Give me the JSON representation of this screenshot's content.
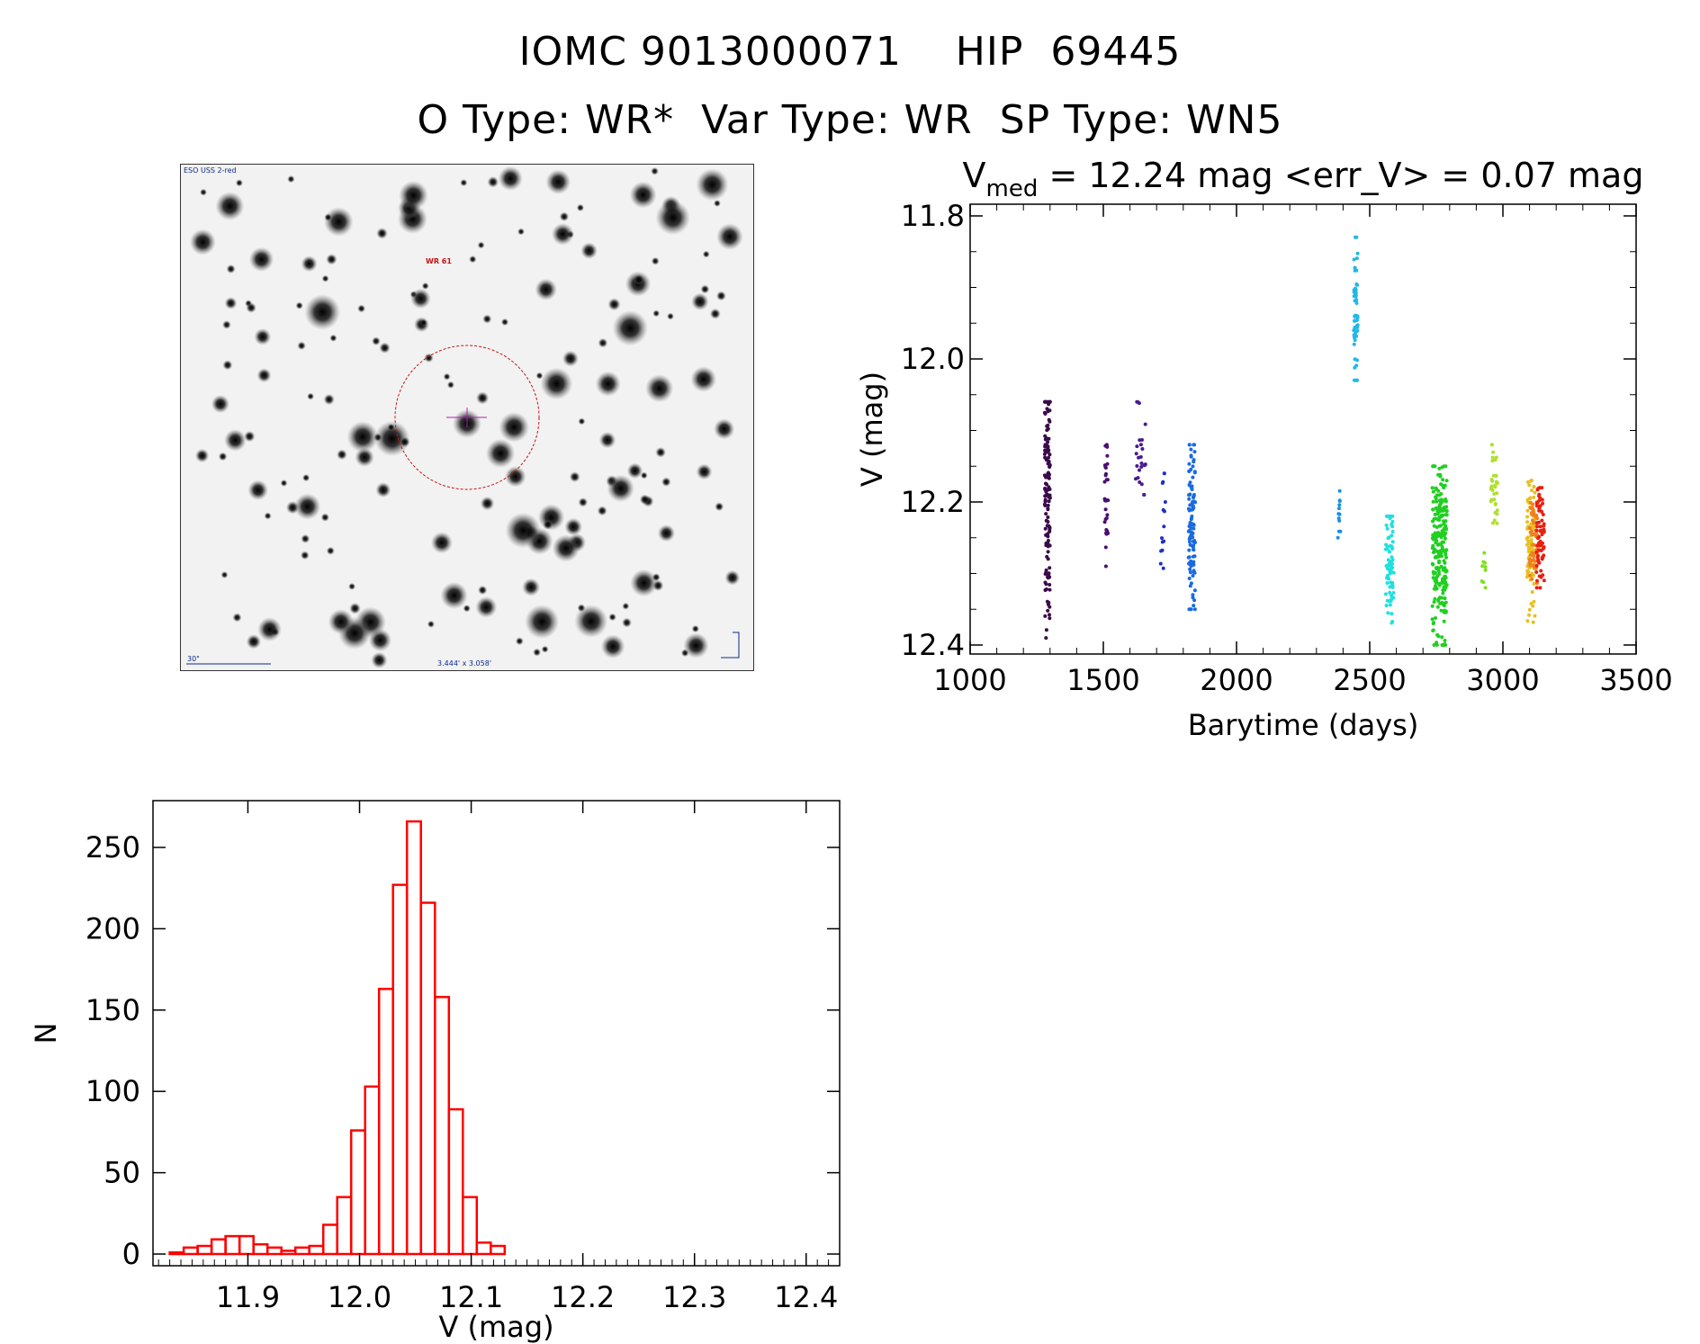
{
  "header": {
    "title_line1": "IOMC 9013000071    HIP  69445",
    "title_line2": "O Type: WR*  Var Type: WR  SP Type: WN5"
  },
  "finder": {
    "survey_label": "ESO USS 2-red",
    "target_label": "WR 61",
    "scale_label": "30\"",
    "fov_label": "3.444' x 3.058'"
  },
  "chart_data": [
    {
      "type": "scatter",
      "title": "V_med = 12.24 mag <err_V> = 0.07 mag",
      "title_parts": {
        "v": "V",
        "sub": "med",
        "rest": " = 12.24 mag <err_V> = 0.07 mag"
      },
      "xlabel": "Barytime (days)",
      "ylabel": "V (mag)",
      "xlim": [
        1000,
        3500
      ],
      "ylim": [
        12.4,
        11.8
      ],
      "y_inverted": true,
      "xticks": [
        1000,
        1500,
        2000,
        2500,
        3000,
        3500
      ],
      "xtick_labels": [
        "1000",
        "1500",
        "2000",
        "2500",
        "3000",
        "3500"
      ],
      "yticks": [
        11.8,
        12.0,
        12.2,
        12.4
      ],
      "ytick_labels": [
        "11.8",
        "12.0",
        "12.2",
        "12.4"
      ],
      "grid": false,
      "series": [
        {
          "color": "#3a0a4a",
          "x": [
            1280,
            1300
          ],
          "y": [
            12.06,
            12.39
          ],
          "mean": 12.2,
          "count": 140
        },
        {
          "color": "#4a1070",
          "x": [
            1505,
            1520
          ],
          "y": [
            12.12,
            12.29
          ],
          "mean": 12.2,
          "count": 30
        },
        {
          "color": "#4a1a90",
          "x": [
            1620,
            1660
          ],
          "y": [
            12.06,
            12.19
          ],
          "mean": 12.13,
          "count": 25
        },
        {
          "color": "#2030c0",
          "x": [
            1715,
            1735
          ],
          "y": [
            12.16,
            12.33
          ],
          "mean": 12.22,
          "count": 15
        },
        {
          "color": "#1a6ae0",
          "x": [
            1820,
            1845
          ],
          "y": [
            12.12,
            12.35
          ],
          "mean": 12.23,
          "count": 110
        },
        {
          "color": "#1a90e0",
          "x": [
            2380,
            2390
          ],
          "y": [
            12.18,
            12.25
          ],
          "mean": 12.22,
          "count": 12
        },
        {
          "color": "#20b8e8",
          "x": [
            2440,
            2455
          ],
          "y": [
            11.83,
            12.03
          ],
          "mean": 11.93,
          "count": 55
        },
        {
          "color": "#20e0e0",
          "x": [
            2560,
            2590
          ],
          "y": [
            12.22,
            12.37
          ],
          "mean": 12.29,
          "count": 80
        },
        {
          "color": "#20d020",
          "x": [
            2735,
            2790
          ],
          "y": [
            12.15,
            12.4
          ],
          "mean": 12.27,
          "count": 240
        },
        {
          "color": "#80e020",
          "x": [
            2920,
            2935
          ],
          "y": [
            12.27,
            12.34
          ],
          "mean": 12.3,
          "count": 10
        },
        {
          "color": "#b0e030",
          "x": [
            2955,
            2980
          ],
          "y": [
            12.12,
            12.23
          ],
          "mean": 12.18,
          "count": 35
        },
        {
          "color": "#e8c020",
          "x": [
            3090,
            3120
          ],
          "y": [
            12.17,
            12.38
          ],
          "mean": 12.26,
          "count": 90
        },
        {
          "color": "#f08020",
          "x": [
            3100,
            3130
          ],
          "y": [
            12.2,
            12.33
          ],
          "mean": 12.26,
          "count": 50
        },
        {
          "color": "#e82010",
          "x": [
            3125,
            3155
          ],
          "y": [
            12.18,
            12.32
          ],
          "mean": 12.25,
          "count": 70
        }
      ]
    },
    {
      "type": "bar",
      "title": "",
      "xlabel": "V (mag)",
      "ylabel": "N",
      "xlim": [
        11.815,
        12.43
      ],
      "ylim": [
        0,
        275
      ],
      "xticks": [
        11.9,
        12.0,
        12.1,
        12.2,
        12.3,
        12.4
      ],
      "xtick_labels": [
        "11.9",
        "12.0",
        "12.1",
        "12.2",
        "12.3",
        "12.4"
      ],
      "yticks": [
        0,
        50,
        100,
        150,
        200,
        250
      ],
      "ytick_labels": [
        "0",
        "50",
        "100",
        "150",
        "200",
        "250"
      ],
      "bin_width": 0.0125,
      "bin_edges_start": 11.83,
      "values": [
        1,
        4,
        5,
        9,
        11,
        11,
        6,
        4,
        2,
        4,
        5,
        18,
        35,
        76,
        103,
        163,
        227,
        266,
        216,
        158,
        89,
        35,
        7,
        5
      ],
      "color": "#ff0000",
      "grid": false
    }
  ]
}
